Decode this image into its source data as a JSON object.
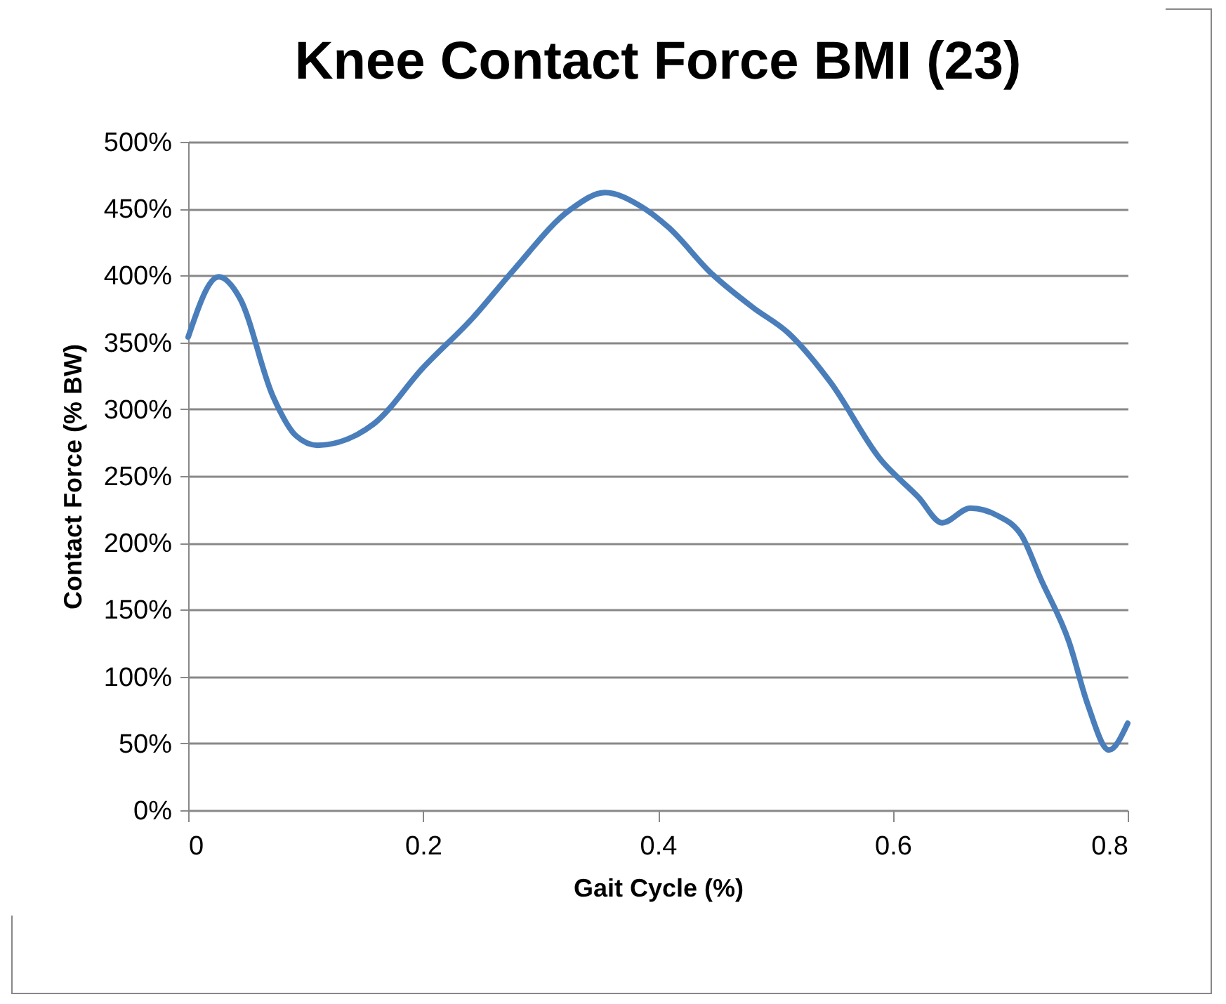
{
  "chart_data": {
    "type": "line",
    "title": "Knee Contact Force BMI (23)",
    "xlabel": "Gait Cycle (%)",
    "ylabel": "Contact Force (% BW)",
    "x": [
      0,
      0.026,
      0.044,
      0.072,
      0.092,
      0.11,
      0.158,
      0.2,
      0.242,
      0.277,
      0.325,
      0.355,
      0.385,
      0.409,
      0.445,
      0.481,
      0.511,
      0.547,
      0.589,
      0.622,
      0.642,
      0.666,
      0.69,
      0.71,
      0.726,
      0.75,
      0.766,
      0.784,
      0.8
    ],
    "series": [
      {
        "color": "#4a7ebb",
        "values": [
          354,
          399,
          383,
          310,
          280,
          273,
          289,
          331,
          368,
          404,
          449,
          462,
          452,
          436,
          402,
          376,
          357,
          320,
          263,
          234,
          215,
          226,
          220,
          205,
          173,
          126,
          79,
          45,
          65
        ]
      }
    ],
    "xlim": [
      0,
      0.8
    ],
    "xticks": [
      0,
      0.2,
      0.4,
      0.6,
      0.8
    ],
    "ylim": [
      0,
      500
    ],
    "yticks": [
      {
        "value": 0,
        "label": "0%"
      },
      {
        "value": 50,
        "label": "50%"
      },
      {
        "value": 100,
        "label": "100%"
      },
      {
        "value": 150,
        "label": "150%"
      },
      {
        "value": 200,
        "label": "200%"
      },
      {
        "value": 250,
        "label": "250%"
      },
      {
        "value": 300,
        "label": "300%"
      },
      {
        "value": 350,
        "label": "350%"
      },
      {
        "value": 400,
        "label": "400%"
      },
      {
        "value": 450,
        "label": "450%"
      },
      {
        "value": 500,
        "label": "500%"
      }
    ],
    "grid": "y",
    "legend": false,
    "marker": "none",
    "line_style": "solid"
  }
}
